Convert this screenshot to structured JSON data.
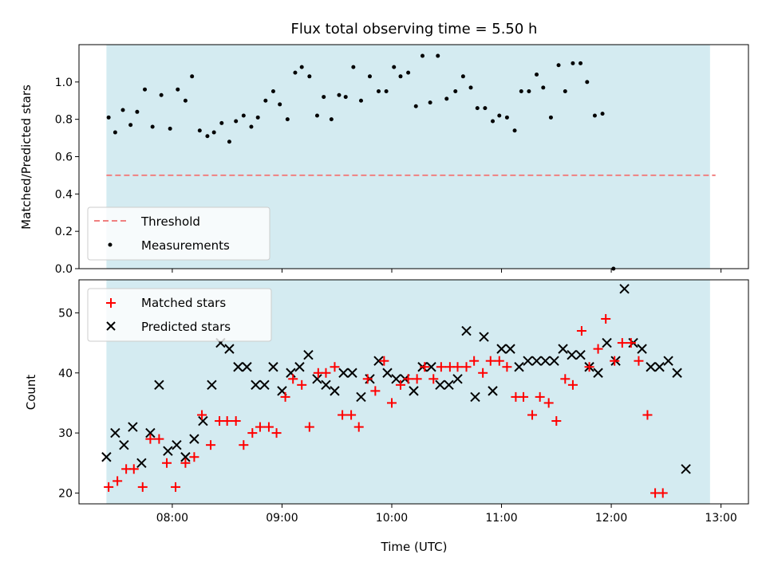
{
  "chart_data": [
    {
      "type": "scatter",
      "title": "Flux total observing time = 5.50 h",
      "xlabel": "",
      "ylabel": "Matched/Predicted stars",
      "ylim": [
        0,
        1.2
      ],
      "yticks": [
        "0.0",
        "0.2",
        "0.4",
        "0.6",
        "0.8",
        "1.0"
      ],
      "shaded_span_hours": [
        7.4,
        12.9
      ],
      "shade_color": "#d4ebf1",
      "threshold": {
        "name": "Threshold",
        "y": 0.5,
        "x_range": [
          7.4,
          12.95
        ],
        "color": "#f08080"
      },
      "legend": [
        "Threshold",
        "Measurements"
      ],
      "legend_position": "lower-left",
      "series": [
        {
          "name": "Measurements",
          "color": "#000000",
          "points": [
            [
              7.42,
              0.81
            ],
            [
              7.48,
              0.73
            ],
            [
              7.55,
              0.85
            ],
            [
              7.62,
              0.77
            ],
            [
              7.68,
              0.84
            ],
            [
              7.75,
              0.96
            ],
            [
              7.82,
              0.76
            ],
            [
              7.9,
              0.93
            ],
            [
              7.98,
              0.75
            ],
            [
              8.05,
              0.96
            ],
            [
              8.12,
              0.9
            ],
            [
              8.18,
              1.03
            ],
            [
              8.25,
              0.74
            ],
            [
              8.32,
              0.71
            ],
            [
              8.38,
              0.73
            ],
            [
              8.45,
              0.78
            ],
            [
              8.52,
              0.68
            ],
            [
              8.58,
              0.79
            ],
            [
              8.65,
              0.82
            ],
            [
              8.72,
              0.76
            ],
            [
              8.78,
              0.81
            ],
            [
              8.85,
              0.9
            ],
            [
              8.92,
              0.95
            ],
            [
              8.98,
              0.88
            ],
            [
              9.05,
              0.8
            ],
            [
              9.12,
              1.05
            ],
            [
              9.18,
              1.08
            ],
            [
              9.25,
              1.03
            ],
            [
              9.32,
              0.82
            ],
            [
              9.38,
              0.92
            ],
            [
              9.45,
              0.8
            ],
            [
              9.52,
              0.93
            ],
            [
              9.58,
              0.92
            ],
            [
              9.65,
              1.08
            ],
            [
              9.72,
              0.9
            ],
            [
              9.8,
              1.03
            ],
            [
              9.88,
              0.95
            ],
            [
              9.95,
              0.95
            ],
            [
              10.02,
              1.08
            ],
            [
              10.08,
              1.03
            ],
            [
              10.15,
              1.05
            ],
            [
              10.22,
              0.87
            ],
            [
              10.28,
              1.14
            ],
            [
              10.35,
              0.89
            ],
            [
              10.42,
              1.14
            ],
            [
              10.5,
              0.91
            ],
            [
              10.58,
              0.95
            ],
            [
              10.65,
              1.03
            ],
            [
              10.72,
              0.97
            ],
            [
              10.78,
              0.86
            ],
            [
              10.85,
              0.86
            ],
            [
              10.92,
              0.79
            ],
            [
              10.98,
              0.82
            ],
            [
              11.05,
              0.81
            ],
            [
              11.12,
              0.74
            ],
            [
              11.18,
              0.95
            ],
            [
              11.25,
              0.95
            ],
            [
              11.32,
              1.04
            ],
            [
              11.38,
              0.97
            ],
            [
              11.45,
              0.81
            ],
            [
              11.52,
              1.09
            ],
            [
              11.58,
              0.95
            ],
            [
              11.65,
              1.1
            ],
            [
              11.72,
              1.1
            ],
            [
              11.78,
              1.0
            ],
            [
              11.85,
              0.82
            ],
            [
              11.92,
              0.83
            ],
            [
              12.02,
              0.0
            ]
          ]
        }
      ]
    },
    {
      "type": "scatter",
      "title": "",
      "xlabel": "Time (UTC)",
      "ylabel": "Count",
      "ylim": [
        18.2,
        55.5
      ],
      "yticks": [
        "20",
        "30",
        "40",
        "50"
      ],
      "xticks": [
        "08:00",
        "09:00",
        "10:00",
        "11:00",
        "12:00",
        "13:00"
      ],
      "xlim_hours": [
        7.15,
        13.25
      ],
      "legend": [
        "Matched stars",
        "Predicted stars"
      ],
      "legend_position": "upper-left",
      "series": [
        {
          "name": "Matched stars",
          "color": "#ff0000",
          "marker": "+",
          "points": [
            [
              7.42,
              21
            ],
            [
              7.5,
              22
            ],
            [
              7.58,
              24
            ],
            [
              7.65,
              24
            ],
            [
              7.73,
              21
            ],
            [
              7.8,
              29
            ],
            [
              7.88,
              29
            ],
            [
              7.95,
              25
            ],
            [
              8.03,
              21
            ],
            [
              8.12,
              25
            ],
            [
              8.2,
              26
            ],
            [
              8.27,
              33
            ],
            [
              8.35,
              28
            ],
            [
              8.43,
              32
            ],
            [
              8.5,
              32
            ],
            [
              8.58,
              32
            ],
            [
              8.65,
              28
            ],
            [
              8.73,
              30
            ],
            [
              8.8,
              31
            ],
            [
              8.88,
              31
            ],
            [
              8.95,
              30
            ],
            [
              9.03,
              36
            ],
            [
              9.1,
              39
            ],
            [
              9.18,
              38
            ],
            [
              9.25,
              31
            ],
            [
              9.33,
              40
            ],
            [
              9.4,
              40
            ],
            [
              9.48,
              41
            ],
            [
              9.55,
              33
            ],
            [
              9.63,
              33
            ],
            [
              9.7,
              31
            ],
            [
              9.78,
              39
            ],
            [
              9.85,
              37
            ],
            [
              9.93,
              42
            ],
            [
              10.0,
              35
            ],
            [
              10.08,
              38
            ],
            [
              10.15,
              39
            ],
            [
              10.23,
              39
            ],
            [
              10.3,
              41
            ],
            [
              10.38,
              39
            ],
            [
              10.45,
              41
            ],
            [
              10.53,
              41
            ],
            [
              10.6,
              41
            ],
            [
              10.68,
              41
            ],
            [
              10.75,
              42
            ],
            [
              10.83,
              40
            ],
            [
              10.9,
              42
            ],
            [
              10.98,
              42
            ],
            [
              11.05,
              41
            ],
            [
              11.13,
              36
            ],
            [
              11.2,
              36
            ],
            [
              11.28,
              33
            ],
            [
              11.35,
              36
            ],
            [
              11.43,
              35
            ],
            [
              11.5,
              32
            ],
            [
              11.58,
              39
            ],
            [
              11.65,
              38
            ],
            [
              11.73,
              47
            ],
            [
              11.8,
              41
            ],
            [
              11.88,
              44
            ],
            [
              11.95,
              49
            ],
            [
              12.03,
              42
            ],
            [
              12.1,
              45
            ],
            [
              12.18,
              45
            ],
            [
              12.25,
              42
            ],
            [
              12.33,
              33
            ],
            [
              12.4,
              20
            ],
            [
              12.47,
              20
            ]
          ]
        },
        {
          "name": "Predicted stars",
          "color": "#000000",
          "marker": "x",
          "points": [
            [
              7.4,
              26
            ],
            [
              7.48,
              30
            ],
            [
              7.56,
              28
            ],
            [
              7.64,
              31
            ],
            [
              7.72,
              25
            ],
            [
              7.8,
              30
            ],
            [
              7.88,
              38
            ],
            [
              7.96,
              27
            ],
            [
              8.04,
              28
            ],
            [
              8.12,
              26
            ],
            [
              8.2,
              29
            ],
            [
              8.28,
              32
            ],
            [
              8.36,
              38
            ],
            [
              8.44,
              45
            ],
            [
              8.52,
              44
            ],
            [
              8.6,
              41
            ],
            [
              8.68,
              41
            ],
            [
              8.76,
              38
            ],
            [
              8.84,
              38
            ],
            [
              8.92,
              41
            ],
            [
              9.0,
              37
            ],
            [
              9.08,
              40
            ],
            [
              9.16,
              41
            ],
            [
              9.24,
              43
            ],
            [
              9.32,
              39
            ],
            [
              9.4,
              38
            ],
            [
              9.48,
              37
            ],
            [
              9.56,
              40
            ],
            [
              9.64,
              40
            ],
            [
              9.72,
              36
            ],
            [
              9.8,
              39
            ],
            [
              9.88,
              42
            ],
            [
              9.96,
              40
            ],
            [
              10.04,
              39
            ],
            [
              10.12,
              39
            ],
            [
              10.2,
              37
            ],
            [
              10.28,
              41
            ],
            [
              10.36,
              41
            ],
            [
              10.44,
              38
            ],
            [
              10.52,
              38
            ],
            [
              10.6,
              39
            ],
            [
              10.68,
              47
            ],
            [
              10.76,
              36
            ],
            [
              10.84,
              46
            ],
            [
              10.92,
              37
            ],
            [
              11.0,
              44
            ],
            [
              11.08,
              44
            ],
            [
              11.16,
              41
            ],
            [
              11.24,
              42
            ],
            [
              11.32,
              42
            ],
            [
              11.4,
              42
            ],
            [
              11.48,
              42
            ],
            [
              11.56,
              44
            ],
            [
              11.64,
              43
            ],
            [
              11.72,
              43
            ],
            [
              11.8,
              41
            ],
            [
              11.88,
              40
            ],
            [
              11.96,
              45
            ],
            [
              12.04,
              42
            ],
            [
              12.12,
              54
            ],
            [
              12.2,
              45
            ],
            [
              12.28,
              44
            ],
            [
              12.36,
              41
            ],
            [
              12.44,
              41
            ],
            [
              12.52,
              42
            ],
            [
              12.6,
              40
            ],
            [
              12.68,
              24
            ]
          ]
        }
      ]
    }
  ]
}
